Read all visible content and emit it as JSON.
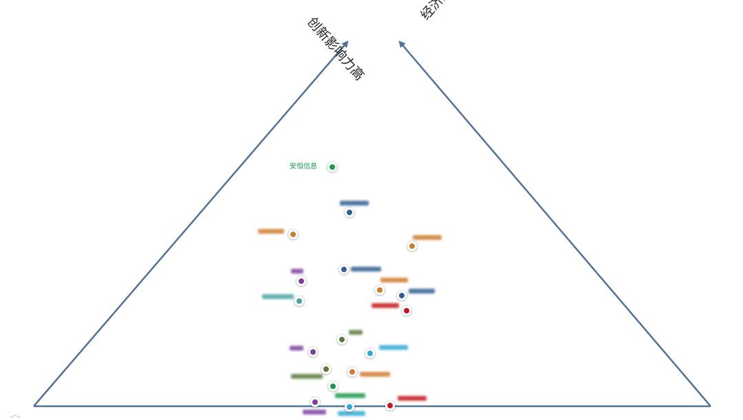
{
  "axes": {
    "left_axis_label": "创新影响力高",
    "right_axis_label": "经济效益高"
  },
  "colors": {
    "frame": "#4f7296",
    "green": "#1a9850",
    "blue": "#2f5f93",
    "orange": "#d17b2e",
    "purple": "#7b3fa0",
    "teal": "#4aa3a3",
    "red": "#c8141e",
    "cyan": "#31a9d6",
    "olive": "#5a7a3a"
  },
  "points": [
    {
      "id": "anheng",
      "label": "安恒信息",
      "color": "green",
      "clear": true
    }
  ]
}
